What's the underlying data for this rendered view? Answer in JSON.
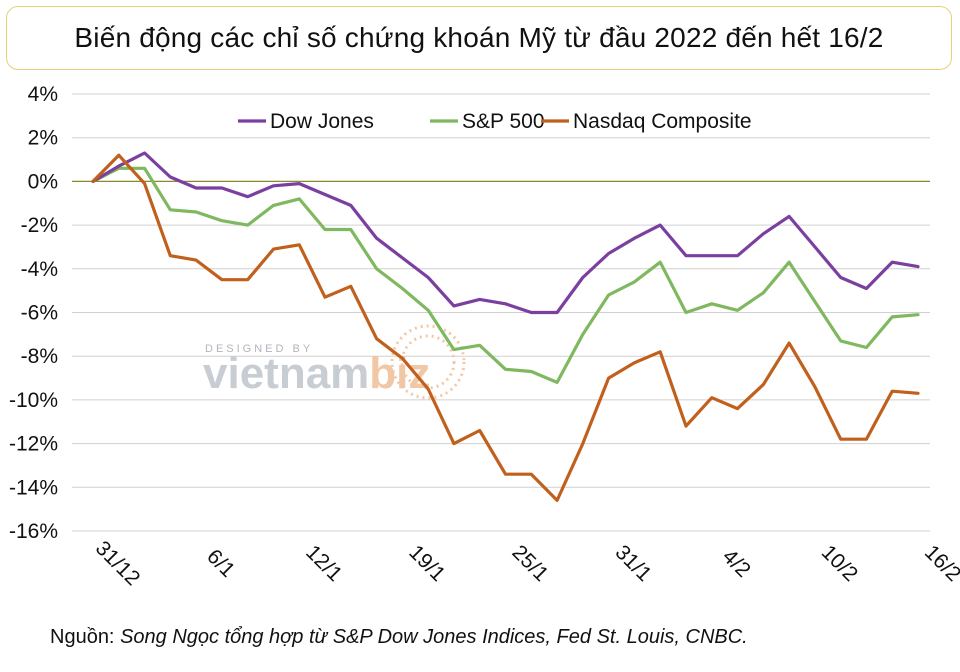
{
  "title": "Biến động các chỉ số chứng khoán Mỹ từ đầu 2022 đến hết 16/2",
  "source_label": "Nguồn:",
  "source_text": "Song Ngọc tổng hợp từ S&P Dow Jones Indices, Fed St. Louis, CNBC.",
  "watermark": {
    "top": "DESIGNED BY",
    "brand_main": "vietnam",
    "brand_accent": "biz"
  },
  "colors": {
    "dow": "#7b3fa0",
    "sp": "#7fb85f",
    "nasdaq": "#c0601c",
    "grid": "#d0d0d0",
    "zero": "#8a8a2a",
    "title_border": "#e3d27a"
  },
  "chart_data": {
    "type": "line",
    "title": "Biến động các chỉ số chứng khoán Mỹ từ đầu 2022 đến hết 16/2",
    "x_tick_labels": [
      "31/12",
      "6/1",
      "12/1",
      "19/1",
      "25/1",
      "31/1",
      "4/2",
      "10/2",
      "16/2"
    ],
    "y_tick_labels": [
      "4%",
      "2%",
      "0%",
      "-2%",
      "-4%",
      "-6%",
      "-8%",
      "-10%",
      "-12%",
      "-14%",
      "-16%"
    ],
    "ylim": [
      -16,
      4
    ],
    "y_unit": "%",
    "grid": "horizontal",
    "legend_position": "top",
    "x": [
      "31/12",
      "3/1",
      "4/1",
      "5/1",
      "6/1",
      "7/1",
      "10/1",
      "11/1",
      "12/1",
      "13/1",
      "14/1",
      "18/1",
      "19/1",
      "20/1",
      "21/1",
      "24/1",
      "25/1",
      "26/1",
      "27/1",
      "28/1",
      "31/1",
      "1/2",
      "2/2",
      "3/2",
      "4/2",
      "7/2",
      "8/2",
      "9/2",
      "10/2",
      "11/2",
      "14/2",
      "15/2",
      "16/2"
    ],
    "series": [
      {
        "name": "Dow Jones",
        "color": "#7b3fa0",
        "values": [
          0,
          0.7,
          1.3,
          0.2,
          -0.3,
          -0.3,
          -0.7,
          -0.2,
          -0.1,
          -0.6,
          -1.1,
          -2.6,
          -3.5,
          -4.4,
          -5.7,
          -5.4,
          -5.6,
          -6.0,
          -6.0,
          -4.4,
          -3.3,
          -2.6,
          -2.0,
          -3.4,
          -3.4,
          -3.4,
          -2.4,
          -1.6,
          -3.0,
          -4.4,
          -4.9,
          -3.7,
          -3.9
        ]
      },
      {
        "name": "S&P 500",
        "color": "#7fb85f",
        "values": [
          0,
          0.6,
          0.6,
          -1.3,
          -1.4,
          -1.8,
          -2.0,
          -1.1,
          -0.8,
          -2.2,
          -2.2,
          -4.0,
          -4.9,
          -5.9,
          -7.7,
          -7.5,
          -8.6,
          -8.7,
          -9.2,
          -7.0,
          -5.2,
          -4.6,
          -3.7,
          -6.0,
          -5.6,
          -5.9,
          -5.1,
          -3.7,
          -5.5,
          -7.3,
          -7.6,
          -6.2,
          -6.1
        ]
      },
      {
        "name": "Nasdaq Composite",
        "color": "#c0601c",
        "values": [
          0,
          1.2,
          -0.1,
          -3.4,
          -3.6,
          -4.5,
          -4.5,
          -3.1,
          -2.9,
          -5.3,
          -4.8,
          -7.2,
          -8.1,
          -9.5,
          -12.0,
          -11.4,
          -13.4,
          -13.4,
          -14.6,
          -12.0,
          -9.0,
          -8.3,
          -7.8,
          -11.2,
          -9.9,
          -10.4,
          -9.3,
          -7.4,
          -9.4,
          -11.8,
          -11.8,
          -9.6,
          -9.7
        ]
      }
    ]
  }
}
